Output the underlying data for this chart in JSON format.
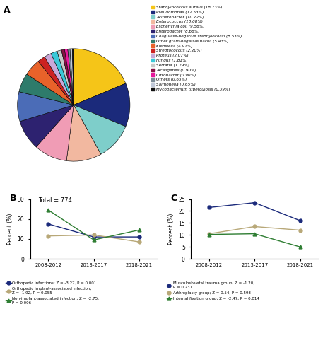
{
  "pie_labels": [
    "Staphylococcus aureus (18.73%)",
    "Pseudomonas (12.53%)",
    "Acinetobacter (10.72%)",
    "Enterococcus (10.08%)",
    "Escherichia coli (9.56%)",
    "Enterobacter (8.66%)",
    "Coagulase-negative staphylococci (8.53%)",
    "Other gram-negative bacilli (5.43%)",
    "Klebsiella (4.91%)",
    "Streptococcus (2.20%)",
    "Proteus (2.07%)",
    "Fungus (1.81%)",
    "Serratia (1.29%)",
    "Alcaligenes (0.90%)",
    "Citrobacter (0.90%)",
    "Others (0.65%)",
    "Salmonella (0.65%)",
    "Mycobacterium tuberculosis (0.39%)"
  ],
  "pie_values": [
    18.73,
    12.53,
    10.72,
    10.08,
    9.56,
    8.66,
    8.53,
    5.43,
    4.91,
    2.2,
    2.07,
    1.81,
    1.29,
    0.9,
    0.9,
    0.65,
    0.65,
    0.39
  ],
  "pie_colors": [
    "#F5C518",
    "#1B2A7B",
    "#7ECECA",
    "#F2B8A0",
    "#F09CB5",
    "#2D2270",
    "#4B6CB7",
    "#2E7B6B",
    "#E8622A",
    "#CC2222",
    "#C8A8D8",
    "#3BC8D8",
    "#C8C8C8",
    "#881144",
    "#E8189C",
    "#7A8A96",
    "#C0C8D8",
    "#111111"
  ],
  "total_label": "Total = 774",
  "panel_A_label": "A",
  "panel_B_label": "B",
  "panel_C_label": "C",
  "xticklabels": [
    "2008-2012",
    "2013-2017",
    "2018-2021"
  ],
  "B_lines": [
    {
      "values": [
        17.5,
        11.0,
        11.0
      ],
      "color": "#1B2A7B",
      "marker": "o",
      "label": "Orthopedic infections; Z = -3.27, P = 0.001"
    },
    {
      "values": [
        11.5,
        12.0,
        8.5
      ],
      "color": "#B8A878",
      "marker": "o",
      "label": "Orthopedic implant-associated infection;\nZ = -1.92, P = 0.055"
    },
    {
      "values": [
        24.5,
        9.5,
        14.5
      ],
      "color": "#2E7D32",
      "marker": "^",
      "label": "Non-implant-associated infection; Z = -2.75,\nP = 0.006"
    }
  ],
  "B_ylim": [
    0,
    30
  ],
  "B_yticks": [
    0,
    10,
    20,
    30
  ],
  "C_lines": [
    {
      "values": [
        21.5,
        23.5,
        16.0
      ],
      "color": "#1B2A7B",
      "marker": "o",
      "label": "Musculoskeletal trauma group; Z = -1.20,\nP = 0.231"
    },
    {
      "values": [
        10.5,
        13.5,
        12.0
      ],
      "color": "#B8A878",
      "marker": "o",
      "label": "Arthroplasty group; Z = 0.54, P = 0.593"
    },
    {
      "values": [
        10.2,
        10.5,
        5.0
      ],
      "color": "#2E7D32",
      "marker": "^",
      "label": "Internal fixation group; Z = -2.47, P = 0.014"
    }
  ],
  "C_ylim": [
    0,
    25
  ],
  "C_yticks": [
    0,
    5,
    10,
    15,
    20,
    25
  ],
  "ylabel": "Percent (%)"
}
